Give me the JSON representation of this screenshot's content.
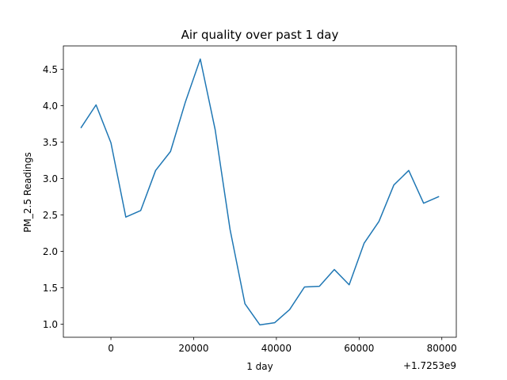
{
  "chart_data": {
    "type": "line",
    "title": "Air quality over past  1 day",
    "xlabel": "1 day",
    "ylabel": "PM_2.5 Readings",
    "x_offset_label": "+1.7253e9",
    "xlim": [
      -11500,
      83500
    ],
    "ylim": [
      0.82,
      4.82
    ],
    "xticks": [
      0,
      20000,
      40000,
      60000,
      80000
    ],
    "xtick_labels": [
      "0",
      "20000",
      "40000",
      "60000",
      "80000"
    ],
    "yticks": [
      1.0,
      1.5,
      2.0,
      2.5,
      3.0,
      3.5,
      4.0,
      4.5
    ],
    "ytick_labels": [
      "1.0",
      "1.5",
      "2.0",
      "2.5",
      "3.0",
      "3.5",
      "4.0",
      "4.5"
    ],
    "grid": false,
    "line_color": "#1f77b4",
    "series": [
      {
        "x": [
          -7200,
          -3600,
          0,
          3600,
          7200,
          10800,
          14400,
          18000,
          21600,
          25200,
          28800,
          32400,
          36000,
          39600,
          43200,
          46800,
          50400,
          54000,
          57600,
          61200,
          64800,
          68400,
          72000,
          75600,
          79200
        ],
        "values": [
          3.7,
          4.01,
          3.49,
          2.47,
          2.56,
          3.11,
          3.37,
          4.05,
          4.64,
          3.67,
          2.3,
          1.28,
          0.99,
          1.02,
          1.2,
          1.51,
          1.52,
          1.75,
          1.54,
          2.11,
          2.41,
          2.91,
          3.11,
          2.66,
          2.75
        ]
      }
    ]
  }
}
